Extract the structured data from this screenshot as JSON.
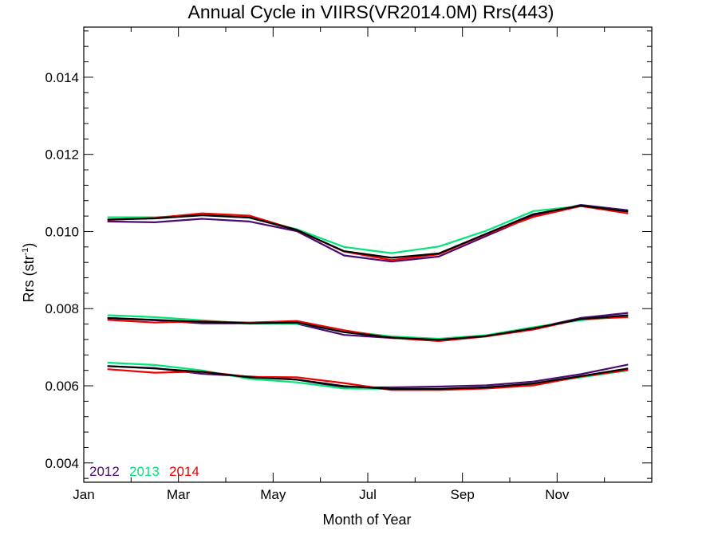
{
  "chart_data": {
    "type": "line",
    "title": "Annual Cycle in VIIRS(VR2014.0M) Rrs(443)",
    "xlabel": "Month of Year",
    "ylabel_base": "Rrs (str",
    "ylabel_sup": "-1",
    "ylabel_end": ")",
    "xlim": [
      0.5,
      12.5
    ],
    "ylim": [
      0.0035,
      0.0153
    ],
    "x_ticks": [
      {
        "x": 0.5,
        "label": "Jan"
      },
      {
        "x": 2.5,
        "label": "Mar"
      },
      {
        "x": 4.5,
        "label": "May"
      },
      {
        "x": 6.5,
        "label": "Jul"
      },
      {
        "x": 8.5,
        "label": "Sep"
      },
      {
        "x": 10.5,
        "label": "Nov"
      }
    ],
    "x_minor_ticks": [
      1.5,
      3.5,
      5.5,
      7.5,
      9.5,
      11.5
    ],
    "y_ticks": [
      {
        "y": 0.004,
        "label": "0.004"
      },
      {
        "y": 0.006,
        "label": "0.006"
      },
      {
        "y": 0.008,
        "label": "0.008"
      },
      {
        "y": 0.01,
        "label": "0.010"
      },
      {
        "y": 0.012,
        "label": "0.012"
      },
      {
        "y": 0.014,
        "label": "0.014"
      }
    ],
    "y_minor_step": 0.0004,
    "x": [
      1,
      2,
      3,
      4,
      5,
      6,
      7,
      8,
      9,
      10,
      11,
      12
    ],
    "series": [
      {
        "name": "2012",
        "color": "#4b0a6e",
        "group": "high",
        "values": [
          0.01026,
          0.01024,
          0.01033,
          0.01026,
          0.01001,
          0.00938,
          0.00922,
          0.00935,
          0.00988,
          0.01041,
          0.01069,
          0.01055
        ]
      },
      {
        "name": "2013",
        "color": "#00e676",
        "group": "high",
        "values": [
          0.01037,
          0.01037,
          0.01043,
          0.01036,
          0.01006,
          0.0096,
          0.00944,
          0.00961,
          0.01002,
          0.01053,
          0.01066,
          0.01052
        ]
      },
      {
        "name": "2014",
        "color": "#f00000",
        "group": "high",
        "values": [
          0.0103,
          0.01035,
          0.01047,
          0.01041,
          0.01004,
          0.00948,
          0.00926,
          0.00941,
          0.00993,
          0.01038,
          0.01066,
          0.01047
        ]
      },
      {
        "name": "",
        "color": "#000000",
        "group": "high",
        "values": [
          0.01031,
          0.01034,
          0.01042,
          0.01036,
          0.01004,
          0.00949,
          0.00932,
          0.00943,
          0.00994,
          0.01045,
          0.01067,
          0.01052
        ]
      },
      {
        "name": "2012",
        "color": "#4b0a6e",
        "group": "mid",
        "values": [
          0.00775,
          0.0077,
          0.00762,
          0.00762,
          0.00761,
          0.00732,
          0.00724,
          0.0072,
          0.00729,
          0.00749,
          0.00776,
          0.00789
        ]
      },
      {
        "name": "2013",
        "color": "#00e676",
        "group": "mid",
        "values": [
          0.00783,
          0.00778,
          0.0077,
          0.00761,
          0.00762,
          0.00742,
          0.00728,
          0.00722,
          0.00731,
          0.00752,
          0.0077,
          0.00781
        ]
      },
      {
        "name": "2014",
        "color": "#f00000",
        "group": "mid",
        "values": [
          0.00771,
          0.00764,
          0.00767,
          0.00764,
          0.00768,
          0.00744,
          0.00724,
          0.00716,
          0.00728,
          0.00746,
          0.00773,
          0.00778
        ]
      },
      {
        "name": "",
        "color": "#000000",
        "group": "mid",
        "values": [
          0.00776,
          0.00771,
          0.00766,
          0.00762,
          0.00764,
          0.00739,
          0.00725,
          0.00719,
          0.00729,
          0.00749,
          0.00773,
          0.00783
        ]
      },
      {
        "name": "2012",
        "color": "#4b0a6e",
        "group": "low",
        "values": [
          0.00651,
          0.00646,
          0.00631,
          0.00624,
          0.00616,
          0.00596,
          0.00596,
          0.00598,
          0.00601,
          0.00611,
          0.0063,
          0.00655
        ]
      },
      {
        "name": "2013",
        "color": "#00e676",
        "group": "low",
        "values": [
          0.0066,
          0.00654,
          0.0064,
          0.00618,
          0.00609,
          0.00593,
          0.00592,
          0.0059,
          0.00595,
          0.00605,
          0.00622,
          0.0064
        ]
      },
      {
        "name": "2014",
        "color": "#f00000",
        "group": "low",
        "values": [
          0.00643,
          0.00634,
          0.00637,
          0.00623,
          0.00622,
          0.00607,
          0.00589,
          0.00589,
          0.00593,
          0.00601,
          0.00624,
          0.00641
        ]
      },
      {
        "name": "",
        "color": "#000000",
        "group": "low",
        "values": [
          0.00651,
          0.00645,
          0.00636,
          0.00622,
          0.00616,
          0.00599,
          0.00592,
          0.00592,
          0.00596,
          0.00606,
          0.00625,
          0.00645
        ]
      }
    ],
    "legend": [
      {
        "label": "2012",
        "color": "#4b0a6e"
      },
      {
        "label": "2013",
        "color": "#00e676"
      },
      {
        "label": "2014",
        "color": "#f00000"
      }
    ],
    "legend_position": "bottom-left",
    "grid": false
  }
}
